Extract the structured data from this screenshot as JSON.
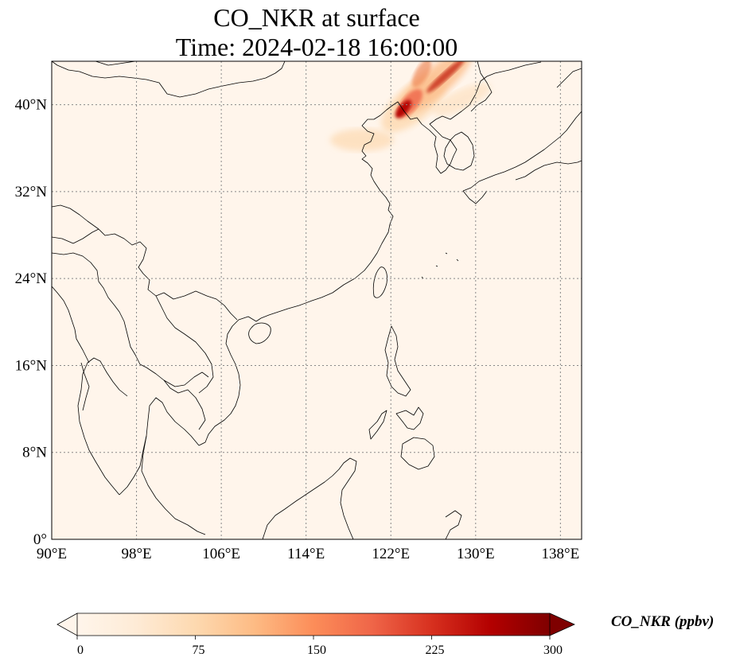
{
  "title": {
    "line1": "CO_NKR at surface",
    "line2": "Time: 2024-02-18 16:00:00"
  },
  "map": {
    "lon_range": [
      90,
      140
    ],
    "lat_range": [
      0,
      44
    ],
    "lon_ticks": [
      "90°E",
      "98°E",
      "106°E",
      "114°E",
      "122°E",
      "130°E",
      "138°E"
    ],
    "lon_tick_values": [
      90,
      98,
      106,
      114,
      122,
      130,
      138
    ],
    "lat_ticks": [
      "0°",
      "8°N",
      "16°N",
      "24°N",
      "32°N",
      "40°N"
    ],
    "lat_tick_values": [
      0,
      8,
      16,
      24,
      32,
      40
    ],
    "gridlines": true,
    "background_color": "#fff5eb"
  },
  "colorbar": {
    "label": "CO_NKR (ppbv)",
    "ticks": [
      "0",
      "75",
      "150",
      "225",
      "300"
    ],
    "tick_values": [
      0,
      75,
      150,
      225,
      300
    ],
    "range": [
      0,
      300
    ],
    "colormap": "OrRd",
    "extend": "both",
    "stops": [
      "#fff5eb",
      "#fee6ce",
      "#fdd0a2",
      "#fdae6b",
      "#fd8d3c",
      "#f16913",
      "#d94801",
      "#a63603",
      "#7f0000"
    ]
  },
  "plume": {
    "description_visible": false,
    "peak_lon": 123.5,
    "peak_lat": 41,
    "max_value": 300
  }
}
